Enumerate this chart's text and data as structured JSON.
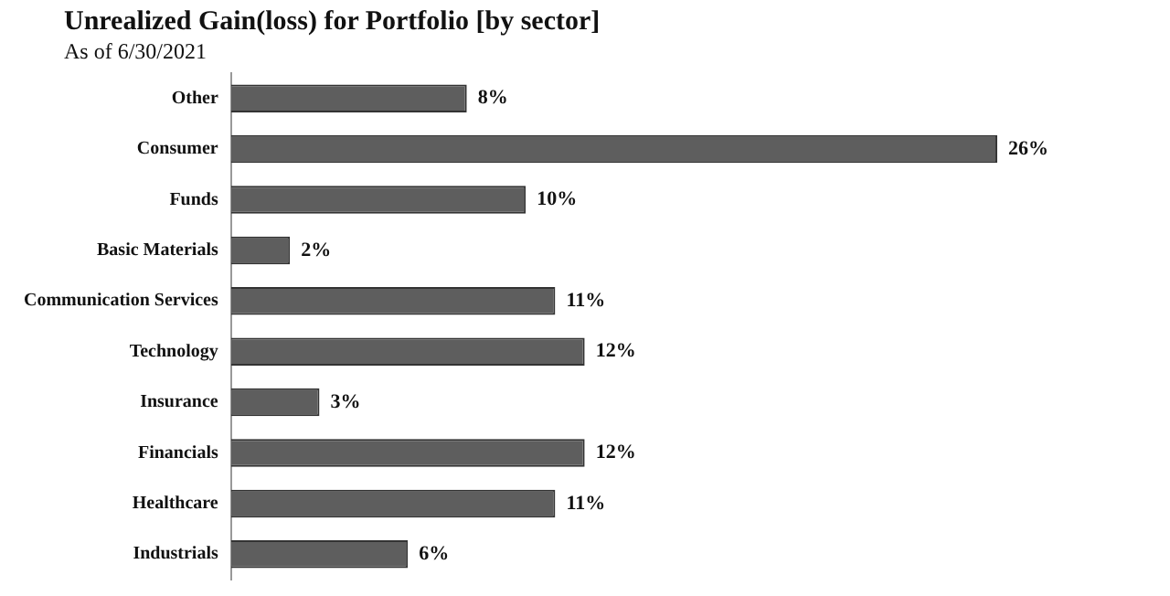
{
  "chart_data": {
    "type": "bar",
    "orientation": "horizontal",
    "title": "Unrealized Gain(loss) for Portfolio [by sector]",
    "subtitle": "As of 6/30/2021",
    "categories": [
      "Other",
      "Consumer",
      "Funds",
      "Basic Materials",
      "Communication Services",
      "Technology",
      "Insurance",
      "Financials",
      "Healthcare",
      "Industrials"
    ],
    "values": [
      8,
      26,
      10,
      2,
      11,
      12,
      3,
      12,
      11,
      6
    ],
    "value_labels": [
      "8%",
      "26%",
      "10%",
      "2%",
      "11%",
      "12%",
      "3%",
      "12%",
      "11%",
      "6%"
    ],
    "color": "#5e5e5e",
    "tick_labels": "y",
    "grid": false,
    "legend": false
  }
}
